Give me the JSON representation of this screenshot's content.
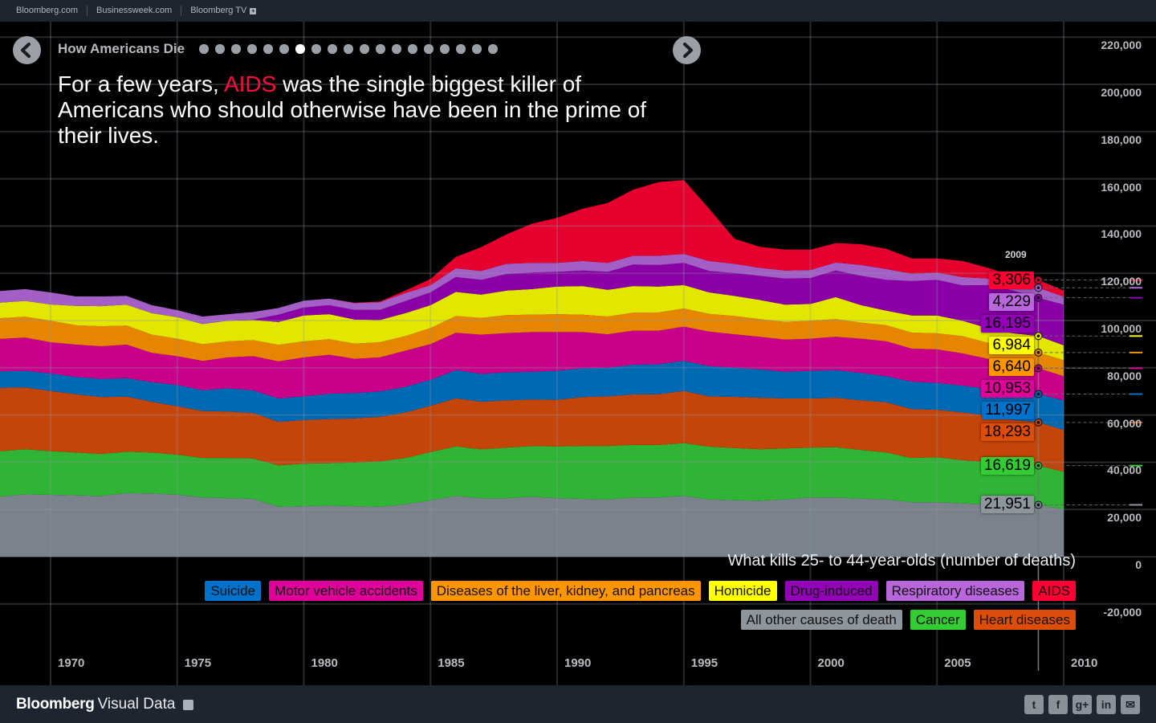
{
  "topbar": {
    "links": [
      "Bloomberg.com",
      "Businessweek.com",
      "Bloomberg TV"
    ]
  },
  "story": {
    "title": "How Americans Die",
    "slide_count": 19,
    "active_slide": 7,
    "prev_icon": "chevron-left-icon",
    "next_icon": "chevron-right-icon",
    "headline_prefix": "For a few years, ",
    "headline_highlight": "AIDS",
    "headline_suffix": " was the single biggest killer of Americans who should otherwise have been in the prime of their lives.",
    "highlight_color": "#ff0a3c"
  },
  "chart_data": {
    "type": "area",
    "stacked": true,
    "title": "What kills 25- to 44-year-olds (number of deaths)",
    "x": [
      1968,
      1969,
      1970,
      1971,
      1972,
      1973,
      1974,
      1975,
      1976,
      1977,
      1978,
      1979,
      1980,
      1981,
      1982,
      1983,
      1984,
      1985,
      1986,
      1987,
      1988,
      1989,
      1990,
      1991,
      1992,
      1993,
      1994,
      1995,
      1996,
      1997,
      1998,
      1999,
      2000,
      2001,
      2002,
      2003,
      2004,
      2005,
      2006,
      2007,
      2008,
      2009,
      2010
    ],
    "xlim": [
      1968,
      2010
    ],
    "xticks": [
      "1970",
      "1975",
      "1980",
      "1985",
      "1990",
      "1995",
      "2000",
      "2005",
      "2010"
    ],
    "ylim": [
      -20000,
      220000
    ],
    "yticks": [
      "220,000",
      "200,000",
      "180,000",
      "160,000",
      "140,000",
      "120,000",
      "100,000",
      "80,000",
      "60,000",
      "40,000",
      "20,000",
      "0",
      "-20,000"
    ],
    "grid": true,
    "legend_position": "bottom-right",
    "highlight_year": "2009",
    "series": [
      {
        "name": "All other causes of death",
        "color": "#7a838c",
        "legend_color": "#8d959d",
        "callout": "21,951",
        "values": [
          25400,
          26400,
          26200,
          26000,
          25700,
          26900,
          26800,
          26300,
          25100,
          24800,
          24500,
          21200,
          21400,
          21700,
          21400,
          21200,
          22200,
          23900,
          25700,
          24800,
          24800,
          25400,
          24800,
          24500,
          24300,
          25100,
          25100,
          25700,
          24300,
          23900,
          23700,
          24300,
          25100,
          25100,
          24600,
          24300,
          23100,
          23100,
          22600,
          22000,
          21900,
          21951,
          20100
        ]
      },
      {
        "name": "Cancer",
        "color": "#30b435",
        "legend_color": "#33cc33",
        "callout": "16,619",
        "values": [
          19300,
          19100,
          18500,
          18100,
          17800,
          17600,
          17300,
          16900,
          16700,
          17000,
          17100,
          17500,
          18000,
          17900,
          18500,
          19200,
          19600,
          20400,
          21000,
          20700,
          21400,
          21400,
          21900,
          22400,
          22600,
          22200,
          22200,
          22400,
          22300,
          22100,
          21800,
          21500,
          21100,
          21300,
          20600,
          19800,
          18700,
          19000,
          18300,
          18100,
          17100,
          16619,
          15900
        ]
      },
      {
        "name": "Heart diseases",
        "color": "#c44509",
        "legend_color": "#dd4d0a",
        "callout": "18,293",
        "values": [
          26800,
          26200,
          25500,
          24700,
          24100,
          23300,
          21500,
          20500,
          19900,
          19700,
          19300,
          18400,
          18500,
          18700,
          18700,
          18800,
          19300,
          19600,
          20400,
          20100,
          20000,
          19800,
          19700,
          20700,
          21000,
          21400,
          21500,
          22100,
          21300,
          21700,
          21800,
          21200,
          20800,
          20900,
          21000,
          21300,
          20700,
          20100,
          20200,
          19700,
          18900,
          18293,
          17700
        ]
      },
      {
        "name": "Suicide",
        "color": "#0069b4",
        "legend_color": "#0072cc",
        "callout": "11,997",
        "values": [
          7000,
          7000,
          7400,
          7300,
          7700,
          7800,
          8300,
          9000,
          8800,
          9800,
          9500,
          9900,
          10000,
          10700,
          10700,
          10800,
          10800,
          11000,
          11900,
          11800,
          11900,
          11700,
          12300,
          12200,
          12100,
          12600,
          12700,
          12700,
          12800,
          12300,
          12000,
          11300,
          11700,
          11700,
          11600,
          11000,
          11600,
          11400,
          11300,
          11300,
          11700,
          11997,
          12500
        ]
      },
      {
        "name": "Motor vehicle accidents",
        "color": "#c8008a",
        "legend_color": "#e0009a",
        "callout": "10,953",
        "values": [
          13700,
          14100,
          13200,
          13700,
          13800,
          14200,
          12400,
          12200,
          12400,
          13100,
          14500,
          15700,
          16500,
          16500,
          14500,
          14400,
          15300,
          15100,
          15800,
          16600,
          16600,
          16800,
          16400,
          15300,
          14200,
          14400,
          14200,
          14500,
          14600,
          14200,
          13800,
          13600,
          13600,
          14100,
          14500,
          14800,
          14000,
          14200,
          13700,
          12700,
          11900,
          10953,
          10200
        ]
      },
      {
        "name": "Diseases of the liver, kidney, and pancreas",
        "color": "#e58500",
        "legend_color": "#ff9500",
        "callout": "6,640",
        "values": [
          8800,
          8800,
          9100,
          8200,
          8500,
          8100,
          7700,
          7400,
          7100,
          6800,
          6800,
          7000,
          6800,
          6600,
          6400,
          6400,
          6200,
          6800,
          7100,
          7100,
          7600,
          7400,
          7600,
          7400,
          7500,
          7600,
          7700,
          7700,
          7500,
          7700,
          7500,
          7500,
          7600,
          7500,
          6800,
          6800,
          6800,
          6800,
          7300,
          6800,
          6600,
          6640,
          6800
        ]
      },
      {
        "name": "Homicide",
        "color": "#e2e600",
        "legend_color": "#ffff00",
        "callout": "6,984",
        "values": [
          6600,
          6700,
          6900,
          8200,
          8500,
          8800,
          9100,
          9100,
          8500,
          8700,
          8500,
          9700,
          10900,
          10600,
          10200,
          9400,
          9700,
          9700,
          10200,
          9900,
          10400,
          10800,
          11700,
          12100,
          11300,
          11300,
          11000,
          9900,
          9100,
          8500,
          8100,
          7300,
          7100,
          9300,
          7400,
          6200,
          7200,
          7500,
          6500,
          6200,
          6500,
          6984,
          6300
        ]
      },
      {
        "name": "Drug-induced",
        "color": "#8a00a6",
        "legend_color": "#9400b8",
        "callout": "16,195",
        "values": [
          0,
          0,
          0,
          0,
          0,
          0,
          0,
          0,
          0,
          0,
          200,
          3100,
          3400,
          3800,
          4100,
          4300,
          5100,
          5400,
          6300,
          6200,
          7000,
          7000,
          6200,
          6600,
          7600,
          9100,
          9100,
          9400,
          9100,
          9700,
          10200,
          11100,
          11000,
          11300,
          12400,
          13000,
          14600,
          15100,
          15000,
          18200,
          18100,
          16195,
          17200
        ]
      },
      {
        "name": "Respiratory diseases",
        "color": "#a35fc6",
        "legend_color": "#b966dd",
        "callout": "4,229",
        "values": [
          4900,
          5000,
          5100,
          4000,
          4100,
          3700,
          3400,
          3000,
          3200,
          2800,
          3200,
          2800,
          2900,
          2800,
          2900,
          3300,
          3400,
          3100,
          3700,
          3800,
          4300,
          4100,
          3800,
          4000,
          3800,
          3700,
          3900,
          3800,
          4200,
          3900,
          3400,
          3400,
          3400,
          3400,
          4600,
          4600,
          3100,
          3100,
          3500,
          2800,
          2800,
          4229,
          3400
        ]
      },
      {
        "name": "AIDS",
        "color": "#e5002e",
        "legend_color": "#ff0033",
        "callout": "3,306",
        "values": [
          0,
          0,
          0,
          0,
          0,
          0,
          0,
          0,
          0,
          0,
          0,
          0,
          0,
          0,
          200,
          300,
          1100,
          2600,
          4800,
          10100,
          12500,
          16600,
          19100,
          22100,
          25400,
          28000,
          31200,
          31300,
          22100,
          10600,
          8900,
          8800,
          8600,
          8200,
          8800,
          8500,
          6500,
          6000,
          6800,
          4500,
          3400,
          3306,
          2600
        ]
      }
    ],
    "legend_rows": [
      [
        3,
        4,
        5,
        6,
        7,
        8,
        9
      ],
      [
        0,
        1,
        2
      ]
    ]
  },
  "footer": {
    "brand_bold": "Bloomberg",
    "brand_light": "Visual Data",
    "share": [
      {
        "icon": "twitter-icon",
        "glyph": "t"
      },
      {
        "icon": "facebook-icon",
        "glyph": "f"
      },
      {
        "icon": "google-plus-icon",
        "glyph": "g+"
      },
      {
        "icon": "linkedin-icon",
        "glyph": "in"
      },
      {
        "icon": "email-icon",
        "glyph": "✉"
      }
    ]
  }
}
